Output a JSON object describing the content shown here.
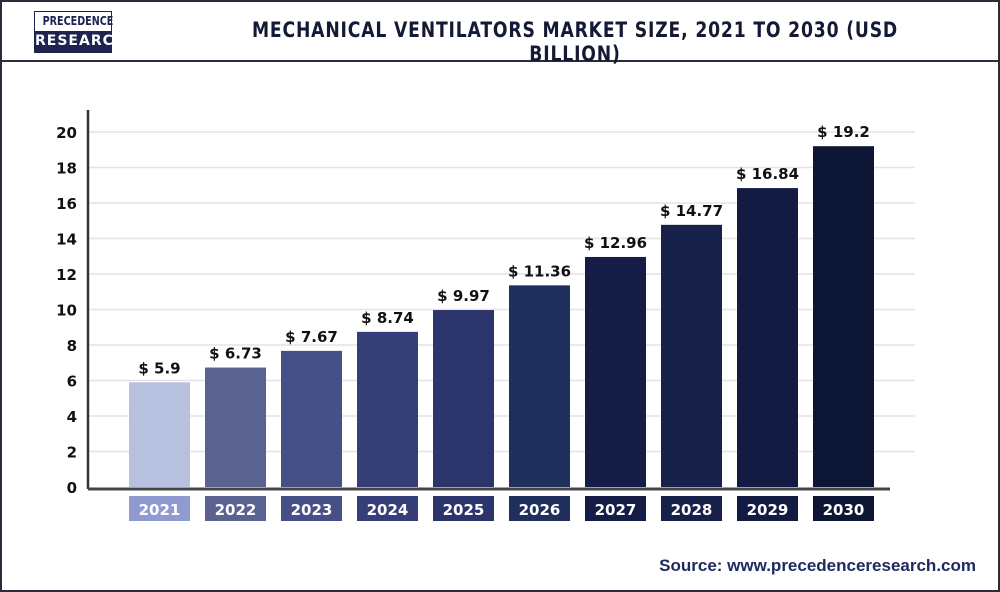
{
  "logo": {
    "line1": "PRECEDENCE",
    "line2": "RESEARCH"
  },
  "source": "Source: www.precedenceresearch.com",
  "chart_data": {
    "type": "bar",
    "title": "MECHANICAL VENTILATORS MARKET SIZE, 2021 TO 2030 (USD BILLION)",
    "categories": [
      "2021",
      "2022",
      "2023",
      "2024",
      "2025",
      "2026",
      "2027",
      "2028",
      "2029",
      "2030"
    ],
    "values": [
      5.9,
      6.73,
      7.67,
      8.74,
      9.97,
      11.36,
      12.96,
      14.77,
      16.84,
      19.2
    ],
    "data_labels": [
      "$ 5.9",
      "$ 6.73",
      "$ 7.67",
      "$ 8.74",
      "$ 9.97",
      "$ 11.36",
      "$ 12.96",
      "$ 14.77",
      "$ 16.84",
      "$ 19.2"
    ],
    "yticks": [
      0,
      2,
      4,
      6,
      8,
      10,
      12,
      14,
      16,
      18,
      20
    ],
    "ylim": [
      0,
      20
    ],
    "xlabel": "",
    "ylabel": "",
    "grid": true,
    "legend": "none",
    "bar_colors": [
      "#b8c0e0",
      "#5a6290",
      "#474f87",
      "#363e77",
      "#2b356c",
      "#20305c",
      "#151d46",
      "#18214a",
      "#141b42",
      "#0e1636"
    ],
    "label_box_colors": [
      "#8e9ad0",
      "#5a6290",
      "#474f87",
      "#363e77",
      "#2b356c",
      "#20305c",
      "#151d46",
      "#18214a",
      "#141b42",
      "#0e1636"
    ]
  }
}
